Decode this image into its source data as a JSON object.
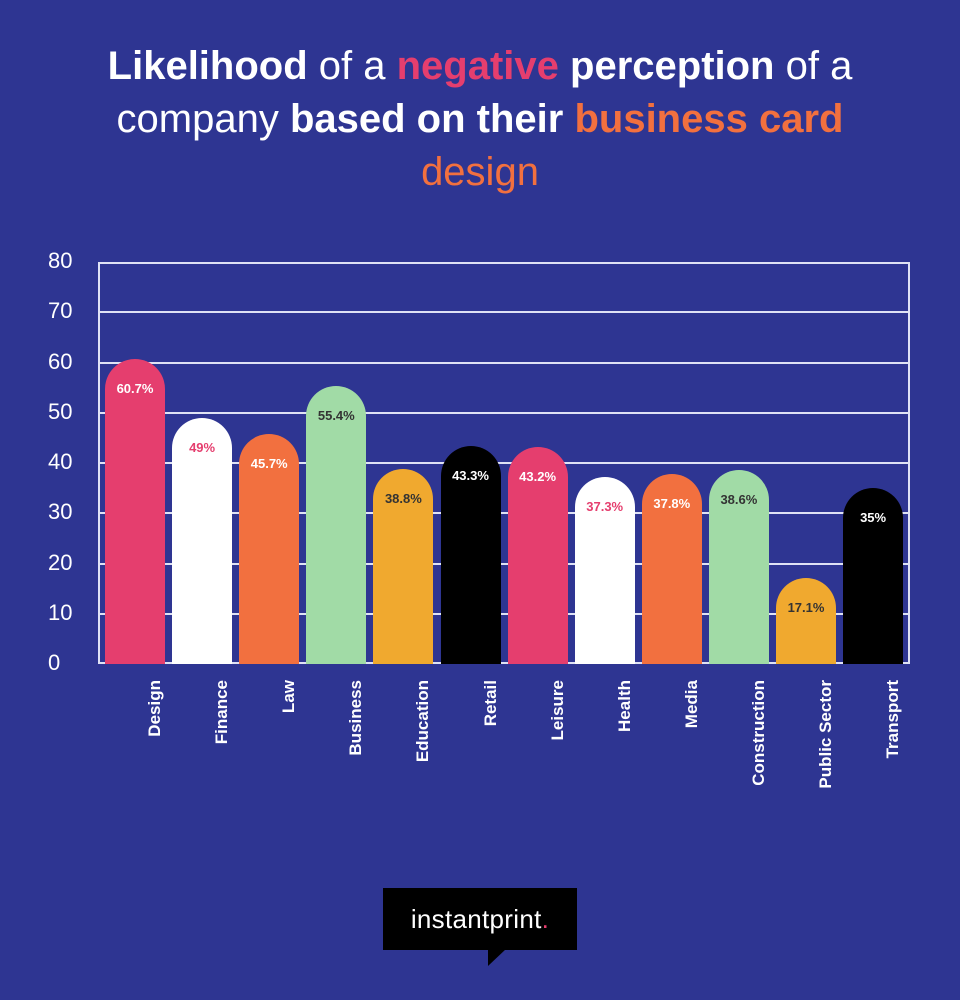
{
  "title": {
    "line1": [
      {
        "text": "Likelihood",
        "style": "bold",
        "color": "#ffffff"
      },
      {
        "text": " of a ",
        "style": "thin",
        "color": "#ffffff"
      },
      {
        "text": "negative",
        "style": "bold",
        "color": "#e53e6e"
      },
      {
        "text": " perception",
        "style": "bold",
        "color": "#ffffff"
      },
      {
        "text": " of a",
        "style": "thin",
        "color": "#ffffff"
      }
    ],
    "line2": [
      {
        "text": "company ",
        "style": "thin",
        "color": "#ffffff"
      },
      {
        "text": "based on their ",
        "style": "bold",
        "color": "#ffffff"
      },
      {
        "text": "business card",
        "style": "bold",
        "color": "#f2703f"
      }
    ],
    "line3": [
      {
        "text": "design",
        "style": "thin",
        "color": "#f2703f"
      }
    ],
    "full": "Likelihood of a negative perception of a company based on their business card design"
  },
  "colors": {
    "background": "#2e3592",
    "grid": "#dfe2f5",
    "pink": "#e53e6e",
    "white": "#ffffff",
    "orange": "#f2703f",
    "green": "#a1dba6",
    "yellow": "#f0a92f",
    "black": "#000000"
  },
  "chart_data": {
    "type": "bar",
    "title": "Likelihood of a negative perception of a company based on their business card design",
    "xlabel": "",
    "ylabel": "",
    "ylim": [
      0,
      80
    ],
    "yticks": [
      0,
      10,
      20,
      30,
      40,
      50,
      60,
      70,
      80
    ],
    "grid": true,
    "legend": null,
    "categories": [
      "Design",
      "Finance",
      "Law",
      "Business",
      "Education",
      "Retail",
      "Leisure",
      "Health",
      "Media",
      "Construction",
      "Public Sector",
      "Transport"
    ],
    "values": [
      60.7,
      49,
      45.7,
      55.4,
      38.8,
      43.3,
      43.2,
      37.3,
      37.8,
      38.6,
      17.1,
      35
    ],
    "labels": [
      "60.7%",
      "49%",
      "45.7%",
      "55.4%",
      "38.8%",
      "43.3%",
      "43.2%",
      "37.3%",
      "37.8%",
      "38.6%",
      "17.1%",
      "35%"
    ],
    "bar_colors": [
      "#e53e6e",
      "#ffffff",
      "#f2703f",
      "#a1dba6",
      "#f0a92f",
      "#000000",
      "#e53e6e",
      "#ffffff",
      "#f2703f",
      "#a1dba6",
      "#f0a92f",
      "#000000"
    ],
    "label_colors": [
      "#ffffff",
      "#e53e6e",
      "#ffffff",
      "#333333",
      "#333333",
      "#ffffff",
      "#ffffff",
      "#e53e6e",
      "#ffffff",
      "#333333",
      "#333333",
      "#ffffff"
    ]
  },
  "logo": {
    "text": "instantprint",
    "dot": ".",
    "dot_color": "#e53e6e"
  }
}
